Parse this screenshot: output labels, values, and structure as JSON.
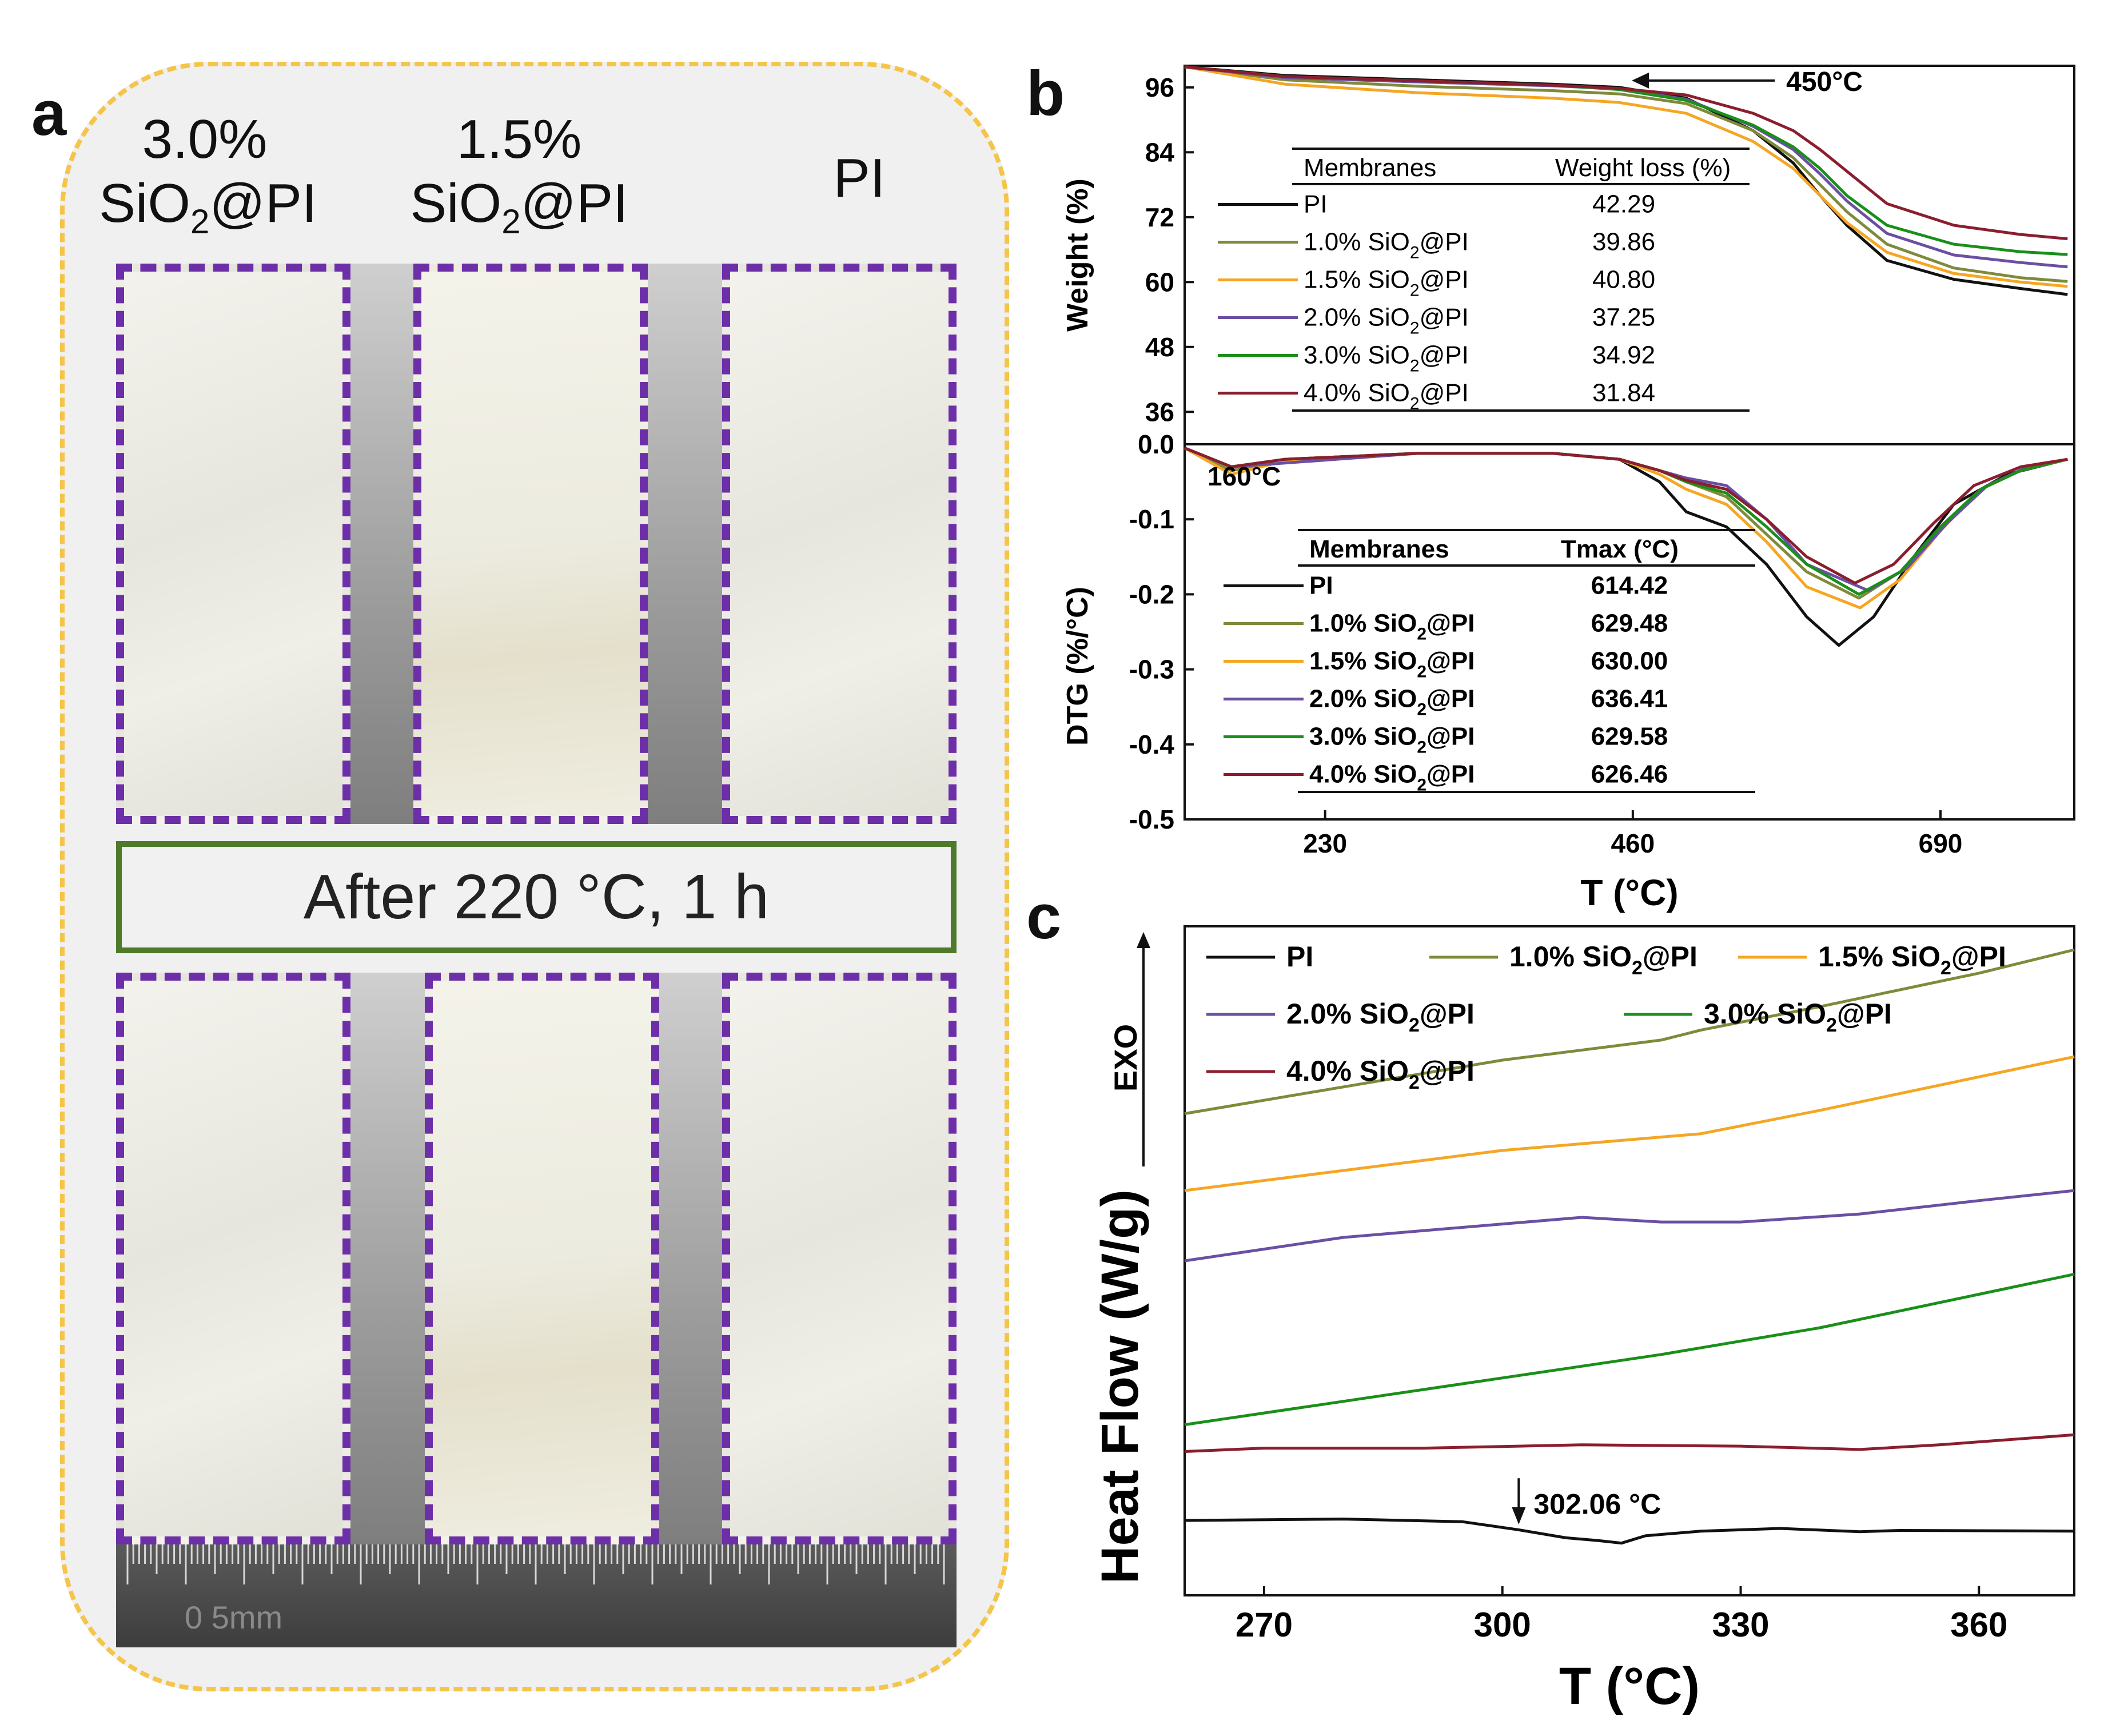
{
  "panel_labels": {
    "a": "a",
    "b": "b",
    "c": "c"
  },
  "panel_a": {
    "titles": [
      {
        "line1": "3.0%",
        "pre": "SiO",
        "sub": "2",
        "post": "@PI"
      },
      {
        "line1": "1.5%",
        "pre": "SiO",
        "sub": "2",
        "post": "@PI"
      },
      {
        "line1": "",
        "pre": "PI",
        "sub": "",
        "post": ""
      }
    ],
    "after_label": "After 220 °C, 1 h",
    "ruler_label": "0 5mm"
  },
  "chart_data": [
    {
      "type": "line",
      "id": "b-top",
      "title": "",
      "ylabel": "Weight (%)",
      "xlim": [
        125,
        790
      ],
      "ylim": [
        30,
        100
      ],
      "yticks": [
        36,
        48,
        60,
        72,
        84,
        96
      ],
      "annotation": "450°C",
      "table": {
        "headers": [
          "Membranes",
          "Weight loss (%)"
        ],
        "rows": [
          [
            "PI",
            "42.29"
          ],
          [
            "1.0% SiO2@PI",
            "39.86"
          ],
          [
            "1.5% SiO2@PI",
            "40.80"
          ],
          [
            "2.0% SiO2@PI",
            "37.25"
          ],
          [
            "3.0% SiO2@PI",
            "34.92"
          ],
          [
            "4.0% SiO2@PI",
            "31.84"
          ]
        ]
      },
      "series": [
        {
          "name": "PI",
          "color": "#111111",
          "x": [
            125,
            200,
            300,
            400,
            450,
            500,
            550,
            580,
            600,
            620,
            650,
            700,
            750,
            785
          ],
          "y": [
            99.8,
            98.2,
            97.4,
            96.6,
            96.0,
            94.0,
            88.0,
            82.0,
            76.0,
            70.5,
            64.0,
            60.5,
            58.8,
            57.7
          ]
        },
        {
          "name": "1.0% SiO2@PI",
          "color": "#7f8a3b",
          "x": [
            125,
            200,
            300,
            400,
            450,
            500,
            550,
            580,
            600,
            620,
            650,
            700,
            750,
            785
          ],
          "y": [
            99.8,
            97.4,
            96.2,
            95.4,
            94.8,
            93.0,
            88.0,
            83.0,
            78.0,
            73.0,
            67.0,
            62.6,
            60.8,
            60.1
          ]
        },
        {
          "name": "1.5% SiO2@PI",
          "color": "#f5a623",
          "x": [
            125,
            200,
            300,
            400,
            450,
            500,
            550,
            580,
            600,
            620,
            650,
            700,
            750,
            785
          ],
          "y": [
            99.8,
            96.6,
            95.0,
            94.0,
            93.2,
            91.2,
            86.0,
            81.0,
            76.0,
            71.0,
            65.5,
            61.6,
            60.0,
            59.2
          ]
        },
        {
          "name": "2.0% SiO2@PI",
          "color": "#6a4fa3",
          "x": [
            125,
            200,
            300,
            400,
            450,
            500,
            550,
            580,
            600,
            620,
            650,
            700,
            750,
            785
          ],
          "y": [
            99.8,
            97.8,
            97.0,
            96.3,
            95.7,
            93.8,
            88.8,
            84.5,
            80.0,
            75.0,
            69.0,
            65.0,
            63.6,
            62.8
          ]
        },
        {
          "name": "3.0% SiO2@PI",
          "color": "#1a8f1a",
          "x": [
            125,
            200,
            300,
            400,
            450,
            500,
            550,
            580,
            600,
            620,
            650,
            700,
            750,
            785
          ],
          "y": [
            99.8,
            98.0,
            97.2,
            96.4,
            95.6,
            93.6,
            89.0,
            85.0,
            81.0,
            76.0,
            70.5,
            67.0,
            65.6,
            65.1
          ]
        },
        {
          "name": "4.0% SiO2@PI",
          "color": "#8b1e2e",
          "x": [
            125,
            200,
            300,
            400,
            450,
            500,
            550,
            580,
            600,
            620,
            650,
            700,
            750,
            785
          ],
          "y": [
            99.8,
            98.0,
            97.2,
            96.4,
            95.8,
            94.6,
            91.2,
            88.0,
            84.5,
            80.5,
            74.5,
            70.5,
            68.8,
            68.0
          ]
        }
      ]
    },
    {
      "type": "line",
      "id": "b-bottom",
      "title": "",
      "xlabel": "T (°C)",
      "ylabel": "DTG (%/°C)",
      "xlim": [
        125,
        790
      ],
      "ylim": [
        -0.5,
        0.0
      ],
      "xticks": [
        230,
        460,
        690
      ],
      "yticks": [
        0.0,
        -0.1,
        -0.2,
        -0.3,
        -0.4,
        -0.5
      ],
      "annotation": "160°C",
      "table": {
        "headers": [
          "Membranes",
          "Tmax (°C)"
        ],
        "rows": [
          [
            "PI",
            "614.42"
          ],
          [
            "1.0% SiO2@PI",
            "629.48"
          ],
          [
            "1.5% SiO2@PI",
            "630.00"
          ],
          [
            "2.0% SiO2@PI",
            "636.41"
          ],
          [
            "3.0% SiO2@PI",
            "629.58"
          ],
          [
            "4.0% SiO2@PI",
            "626.46"
          ]
        ]
      },
      "series": [
        {
          "name": "PI",
          "color": "#111111",
          "x": [
            125,
            160,
            200,
            300,
            400,
            450,
            480,
            500,
            530,
            560,
            590,
            614,
            640,
            670,
            700,
            740,
            785
          ],
          "y": [
            -0.005,
            -0.03,
            -0.02,
            -0.012,
            -0.012,
            -0.02,
            -0.05,
            -0.09,
            -0.11,
            -0.16,
            -0.23,
            -0.268,
            -0.23,
            -0.15,
            -0.08,
            -0.04,
            -0.02
          ]
        },
        {
          "name": "1.0% SiO2@PI",
          "color": "#7f8a3b",
          "x": [
            125,
            160,
            200,
            300,
            400,
            450,
            480,
            500,
            530,
            560,
            590,
            629,
            660,
            690,
            720,
            750,
            785
          ],
          "y": [
            -0.005,
            -0.035,
            -0.022,
            -0.012,
            -0.012,
            -0.02,
            -0.035,
            -0.05,
            -0.07,
            -0.12,
            -0.17,
            -0.205,
            -0.17,
            -0.11,
            -0.06,
            -0.035,
            -0.02
          ]
        },
        {
          "name": "1.5% SiO2@PI",
          "color": "#f5a623",
          "x": [
            125,
            160,
            200,
            300,
            400,
            450,
            480,
            500,
            530,
            560,
            590,
            630,
            660,
            690,
            720,
            750,
            785
          ],
          "y": [
            -0.005,
            -0.04,
            -0.022,
            -0.012,
            -0.012,
            -0.02,
            -0.04,
            -0.06,
            -0.08,
            -0.13,
            -0.19,
            -0.218,
            -0.18,
            -0.115,
            -0.06,
            -0.035,
            -0.02
          ]
        },
        {
          "name": "2.0% SiO2@PI",
          "color": "#6a4fa3",
          "x": [
            125,
            160,
            200,
            300,
            400,
            450,
            480,
            500,
            530,
            560,
            590,
            636,
            665,
            695,
            725,
            755,
            785
          ],
          "y": [
            -0.005,
            -0.03,
            -0.025,
            -0.012,
            -0.012,
            -0.02,
            -0.035,
            -0.045,
            -0.055,
            -0.1,
            -0.16,
            -0.195,
            -0.165,
            -0.105,
            -0.055,
            -0.03,
            -0.02
          ]
        },
        {
          "name": "3.0% SiO2@PI",
          "color": "#1a8f1a",
          "x": [
            125,
            160,
            200,
            300,
            400,
            450,
            480,
            500,
            530,
            560,
            590,
            629,
            660,
            690,
            720,
            750,
            785
          ],
          "y": [
            -0.005,
            -0.03,
            -0.02,
            -0.012,
            -0.012,
            -0.02,
            -0.035,
            -0.05,
            -0.065,
            -0.11,
            -0.16,
            -0.2,
            -0.17,
            -0.11,
            -0.06,
            -0.035,
            -0.02
          ]
        },
        {
          "name": "4.0% SiO2@PI",
          "color": "#8b1e2e",
          "x": [
            125,
            160,
            200,
            300,
            400,
            450,
            480,
            500,
            530,
            560,
            590,
            626,
            655,
            685,
            715,
            750,
            785
          ],
          "y": [
            -0.005,
            -0.03,
            -0.02,
            -0.012,
            -0.012,
            -0.02,
            -0.035,
            -0.048,
            -0.06,
            -0.1,
            -0.15,
            -0.185,
            -0.16,
            -0.105,
            -0.055,
            -0.03,
            -0.02
          ]
        }
      ]
    },
    {
      "type": "line",
      "id": "c",
      "title": "",
      "xlabel": "T (°C)",
      "ylabel": "Heat Flow (W/g)",
      "exo_label": "EXO",
      "xlim": [
        260,
        372
      ],
      "ylim": [
        0,
        100
      ],
      "xticks": [
        270,
        300,
        330,
        360
      ],
      "annotation": "302.06 °C",
      "legend": [
        "PI",
        "1.0% SiO2@PI",
        "1.5% SiO2@PI",
        "2.0% SiO2@PI",
        "3.0% SiO2@PI",
        "4.0% SiO2@PI"
      ],
      "series": [
        {
          "name": "PI",
          "color": "#111111",
          "x": [
            260,
            280,
            295,
            302,
            308,
            312,
            315,
            318,
            325,
            335,
            345,
            350,
            372
          ],
          "y": [
            11.2,
            11.4,
            11.0,
            9.8,
            8.6,
            8.2,
            7.8,
            8.9,
            9.6,
            10.0,
            9.5,
            9.7,
            9.6
          ]
        },
        {
          "name": "1.0% SiO2@PI",
          "color": "#7f8a3b",
          "x": [
            260,
            280,
            300,
            320,
            325,
            340,
            360,
            372
          ],
          "y": [
            72.0,
            76.0,
            80.0,
            83.0,
            84.5,
            88.0,
            93.0,
            96.5
          ]
        },
        {
          "name": "1.5% SiO2@PI",
          "color": "#f5a623",
          "x": [
            260,
            280,
            300,
            315,
            325,
            340,
            360,
            372
          ],
          "y": [
            60.5,
            63.5,
            66.5,
            68.0,
            69.0,
            72.5,
            77.5,
            80.5
          ]
        },
        {
          "name": "2.0% SiO2@PI",
          "color": "#6a4fa3",
          "x": [
            260,
            280,
            300,
            310,
            320,
            330,
            345,
            360,
            372
          ],
          "y": [
            50.0,
            53.5,
            55.5,
            56.5,
            55.8,
            55.8,
            57.0,
            59.0,
            60.5
          ]
        },
        {
          "name": "3.0% SiO2@PI",
          "color": "#1a8f1a",
          "x": [
            260,
            280,
            300,
            320,
            340,
            360,
            372
          ],
          "y": [
            25.5,
            29.0,
            32.5,
            36.0,
            40.0,
            45.0,
            48.0
          ]
        },
        {
          "name": "4.0% SiO2@PI",
          "color": "#8b1e2e",
          "x": [
            260,
            270,
            290,
            310,
            330,
            345,
            355,
            372
          ],
          "y": [
            21.5,
            22.0,
            22.0,
            22.5,
            22.3,
            21.8,
            22.5,
            24.0
          ]
        }
      ]
    }
  ]
}
